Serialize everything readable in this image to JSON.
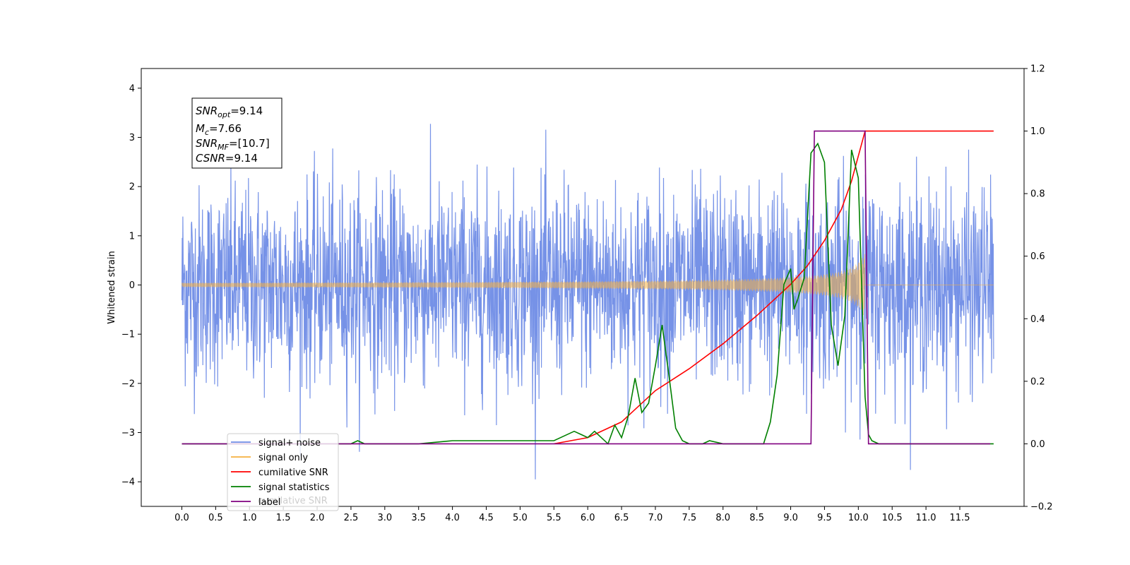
{
  "chart_data": {
    "type": "line",
    "title": "",
    "xlabel": "",
    "ylabel": "Whitened strain",
    "x_range": [
      -0.6,
      12.45
    ],
    "xlim": [
      -0.6,
      12.45
    ],
    "ylim": [
      -4.5,
      4.4
    ],
    "y2lim": [
      -0.2,
      1.2
    ],
    "x_ticks": [
      "0.0",
      "0.5",
      "1.0",
      "1.5",
      "2.0",
      "2.5",
      "3.0",
      "3.5",
      "4.0",
      "4.5",
      "5.0",
      "5.5",
      "6.0",
      "6.5",
      "7.0",
      "7.5",
      "8.0",
      "8.5",
      "9.0",
      "9.5",
      "10.0",
      "10.5",
      "11.0",
      "11.5"
    ],
    "y_ticks": [
      "−4",
      "−3",
      "−2",
      "−1",
      "0",
      "1",
      "2",
      "3",
      "4"
    ],
    "y2_ticks": [
      "−0.2",
      "0.0",
      "0.2",
      "0.4",
      "0.6",
      "0.8",
      "1.0",
      "1.2"
    ],
    "grid": false,
    "legend_position": "lower-left",
    "series": [
      {
        "name": "signal+ noise",
        "axis": "left",
        "color": "#6f8ce6",
        "noise_std": 1.0,
        "x_start": 0.0,
        "x_end": 12.0
      },
      {
        "name": "signal only",
        "axis": "left",
        "color": "#f5b041",
        "x_start": 0.0,
        "merger_x": 10.1,
        "peak_amplitude": 0.7
      },
      {
        "name": "cumilative SNR",
        "axis": "right",
        "color": "#ff0000",
        "x": [
          5.5,
          6.0,
          6.5,
          7.0,
          7.5,
          8.0,
          8.5,
          9.0,
          9.25,
          9.5,
          9.75,
          9.9,
          10.05,
          10.1,
          12.0
        ],
        "y": [
          0.0,
          0.02,
          0.07,
          0.17,
          0.24,
          0.32,
          0.41,
          0.51,
          0.57,
          0.65,
          0.75,
          0.84,
          0.96,
          1.0,
          1.0
        ]
      },
      {
        "name": "signal statistics",
        "axis": "right",
        "color": "#008000",
        "x": [
          0.0,
          2.5,
          2.6,
          2.7,
          3.5,
          4.0,
          4.1,
          4.5,
          5.0,
          5.5,
          5.8,
          5.9,
          6.0,
          6.1,
          6.3,
          6.4,
          6.5,
          6.6,
          6.7,
          6.8,
          6.9,
          7.0,
          7.1,
          7.2,
          7.3,
          7.4,
          7.5,
          7.7,
          7.8,
          8.0,
          8.5,
          8.6,
          8.7,
          8.8,
          8.9,
          9.0,
          9.05,
          9.1,
          9.2,
          9.3,
          9.4,
          9.5,
          9.6,
          9.7,
          9.8,
          9.9,
          10.0,
          10.1,
          10.15,
          10.2,
          10.3,
          11.0,
          12.0
        ],
        "y": [
          0.0,
          0.0,
          0.01,
          0.0,
          0.0,
          0.01,
          0.01,
          0.01,
          0.01,
          0.01,
          0.04,
          0.03,
          0.02,
          0.04,
          0.0,
          0.06,
          0.02,
          0.09,
          0.21,
          0.1,
          0.13,
          0.25,
          0.38,
          0.22,
          0.05,
          0.01,
          0.0,
          0.0,
          0.01,
          0.0,
          0.0,
          0.0,
          0.07,
          0.22,
          0.51,
          0.56,
          0.43,
          0.46,
          0.53,
          0.93,
          0.96,
          0.9,
          0.38,
          0.25,
          0.41,
          0.94,
          0.85,
          0.15,
          0.03,
          0.01,
          0.0,
          0.0,
          0.0
        ]
      },
      {
        "name": "label",
        "axis": "right",
        "color": "#800080",
        "x": [
          0.0,
          9.3,
          9.35,
          10.1,
          10.15,
          11.95
        ],
        "y": [
          0.0,
          0.0,
          1.0,
          1.0,
          0.0,
          0.0
        ]
      }
    ],
    "legend": [
      "signal+ noise",
      "signal only",
      "cumilative SNR",
      "signal statistics",
      "label"
    ],
    "legend_overlap_text": "cumilative SNR",
    "annotation": {
      "snr_opt": {
        "name": "SNR",
        "sub": "opt",
        "value": "=9.14"
      },
      "mc": {
        "name": "M",
        "sub": "c",
        "value": "=7.66"
      },
      "snr_mf": {
        "name": "SNR",
        "sub": "MF",
        "value": "=[10.7]"
      },
      "csnr": {
        "name": "CSNR",
        "value": "=9.14"
      }
    },
    "colors": {
      "noise": "#6f8ce6",
      "signal": "#f5b041",
      "cumulative": "#ff0000",
      "statistics": "#008000",
      "label": "#800080"
    }
  }
}
